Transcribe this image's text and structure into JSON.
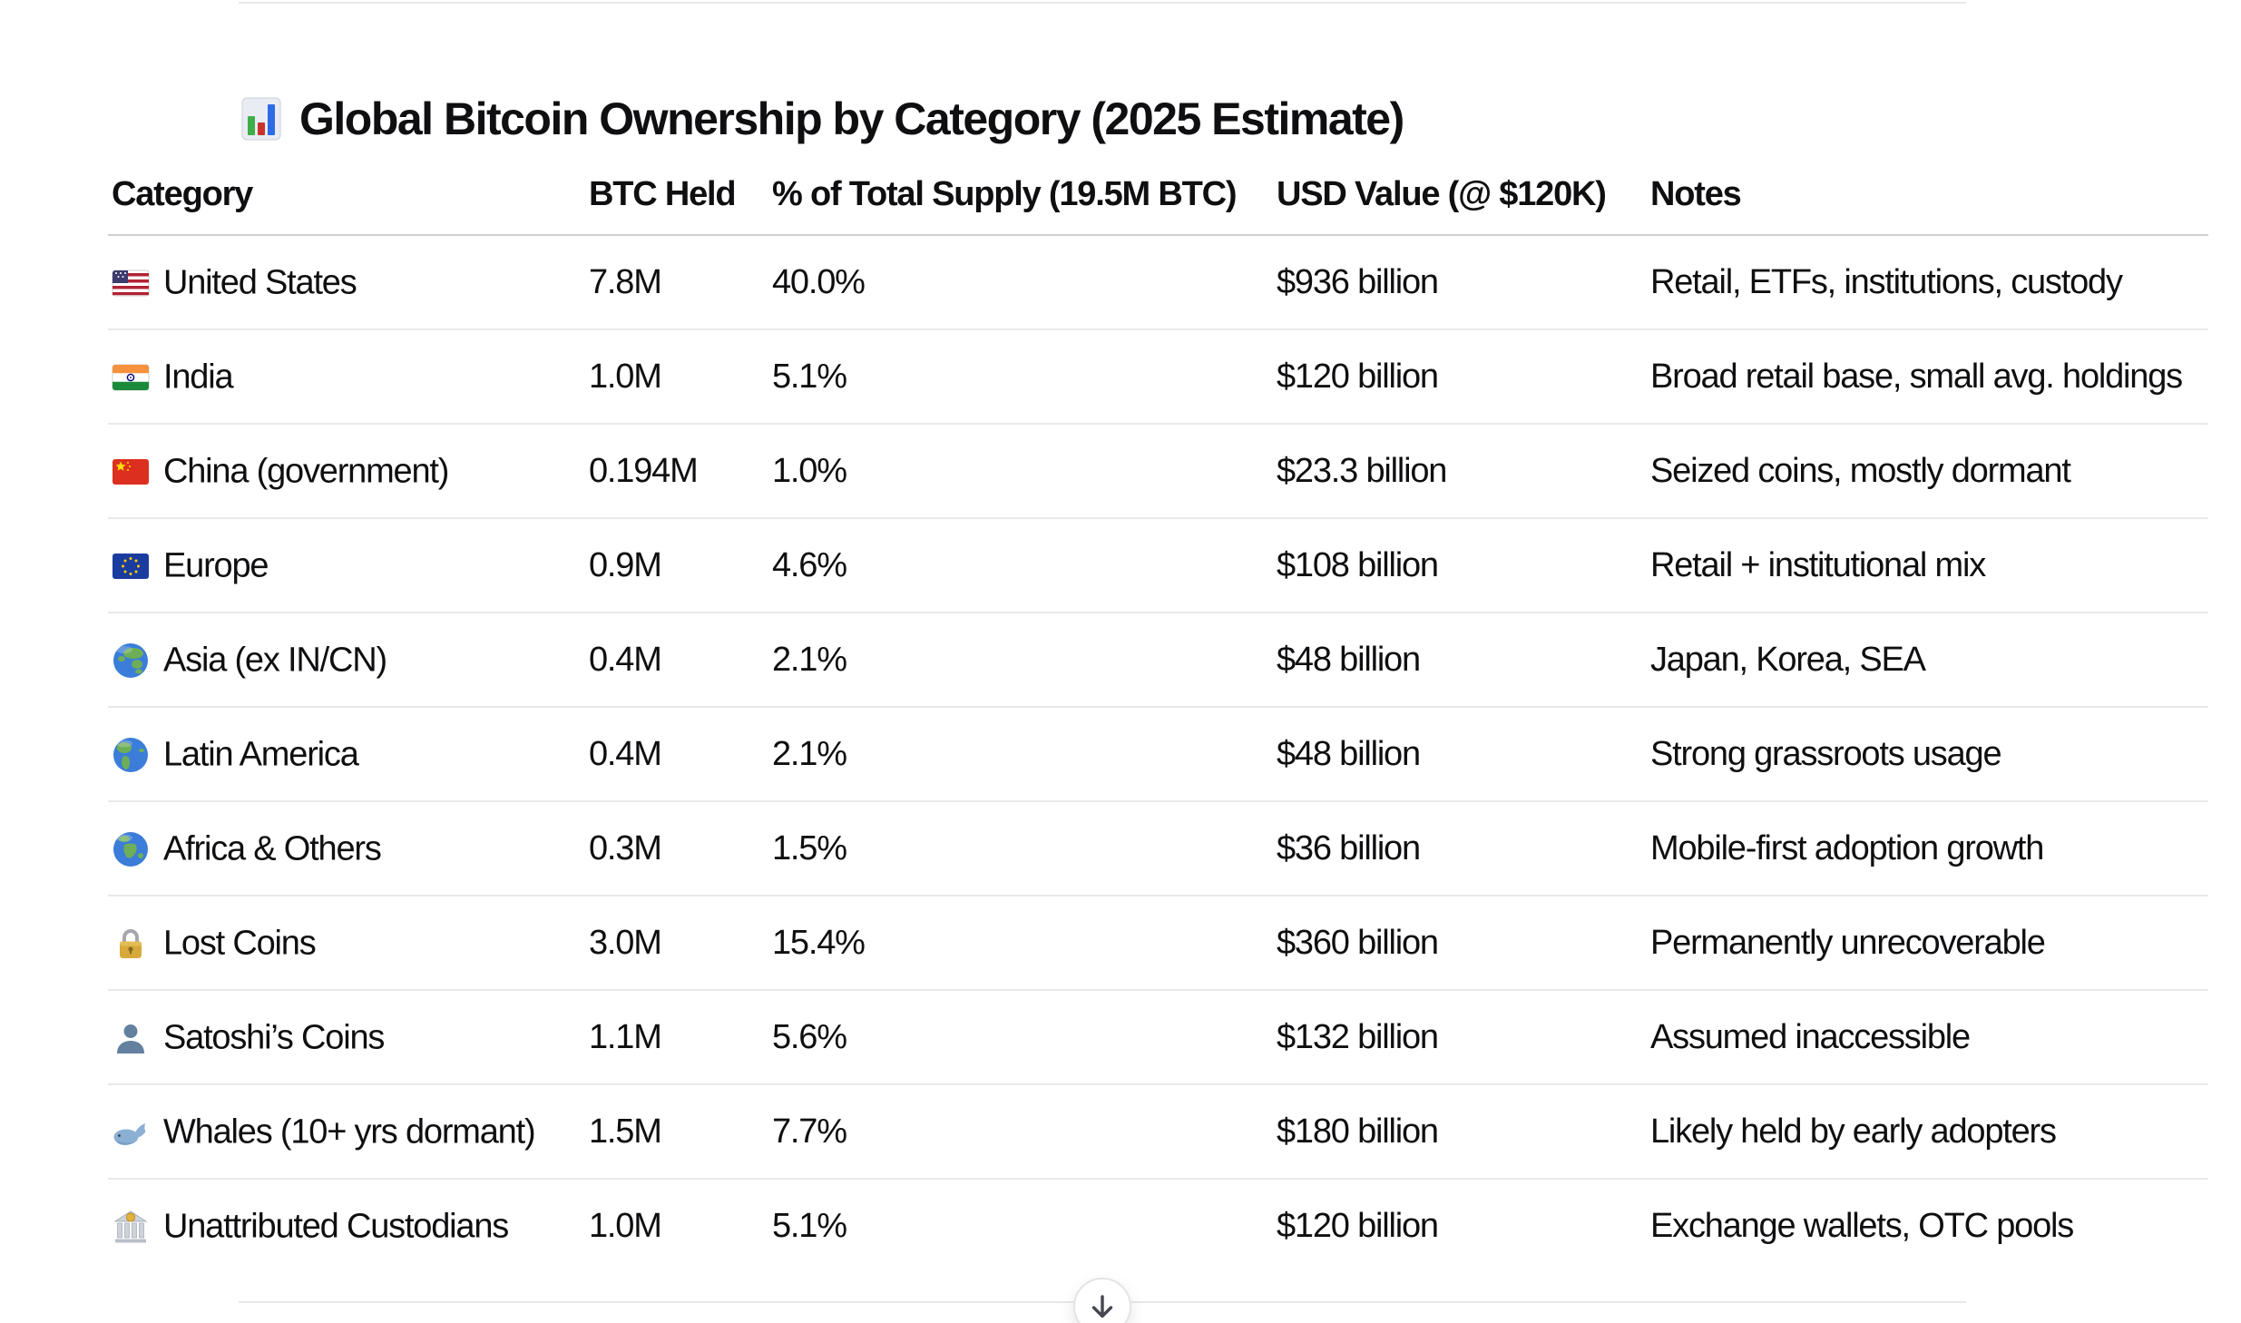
{
  "title": {
    "icon": "bar-chart",
    "text": "Global Bitcoin Ownership by Category (2025 Estimate)"
  },
  "table": {
    "columns": [
      "Category",
      "BTC Held",
      "% of Total Supply (19.5M BTC)",
      "USD Value (@ $120K)",
      "Notes"
    ],
    "row_keys": [
      "category",
      "btc_held",
      "pct_supply",
      "usd_value",
      "notes"
    ],
    "rows": [
      {
        "icon": "us-flag",
        "category": "United States",
        "btc_held": "7.8M",
        "pct_supply": "40.0%",
        "usd_value": "$936 billion",
        "notes": "Retail, ETFs, institutions, custody"
      },
      {
        "icon": "india-flag",
        "category": "India",
        "btc_held": "1.0M",
        "pct_supply": "5.1%",
        "usd_value": "$120 billion",
        "notes": "Broad retail base, small avg. holdings"
      },
      {
        "icon": "china-flag",
        "category": "China (government)",
        "btc_held": "0.194M",
        "pct_supply": "1.0%",
        "usd_value": "$23.3 billion",
        "notes": "Seized coins, mostly dormant"
      },
      {
        "icon": "eu-flag",
        "category": "Europe",
        "btc_held": "0.9M",
        "pct_supply": "4.6%",
        "usd_value": "$108 billion",
        "notes": "Retail + institutional mix"
      },
      {
        "icon": "globe-asia",
        "category": "Asia (ex IN/CN)",
        "btc_held": "0.4M",
        "pct_supply": "2.1%",
        "usd_value": "$48 billion",
        "notes": "Japan, Korea, SEA"
      },
      {
        "icon": "globe-americas",
        "category": "Latin America",
        "btc_held": "0.4M",
        "pct_supply": "2.1%",
        "usd_value": "$48 billion",
        "notes": "Strong grassroots usage"
      },
      {
        "icon": "globe-africa",
        "category": "Africa & Others",
        "btc_held": "0.3M",
        "pct_supply": "1.5%",
        "usd_value": "$36 billion",
        "notes": "Mobile-first adoption growth"
      },
      {
        "icon": "lock",
        "category": "Lost Coins",
        "btc_held": "3.0M",
        "pct_supply": "15.4%",
        "usd_value": "$360 billion",
        "notes": "Permanently unrecoverable"
      },
      {
        "icon": "person",
        "category": "Satoshi’s Coins",
        "btc_held": "1.1M",
        "pct_supply": "5.6%",
        "usd_value": "$132 billion",
        "notes": "Assumed inaccessible"
      },
      {
        "icon": "whale",
        "category": "Whales (10+ yrs dormant)",
        "btc_held": "1.5M",
        "pct_supply": "7.7%",
        "usd_value": "$180 billion",
        "notes": "Likely held by early adopters"
      },
      {
        "icon": "bank",
        "category": "Unattributed Custodians",
        "btc_held": "1.0M",
        "pct_supply": "5.1%",
        "usd_value": "$120 billion",
        "notes": "Exchange wallets, OTC pools"
      }
    ]
  },
  "scroll_button": {
    "icon": "arrow-down"
  },
  "ui_colors": {
    "background": "#ffffff",
    "text": "#0f0f12",
    "divider": "#e8e8ea",
    "header_border": "#cfcfd4",
    "row_border": "#e9e9ec"
  }
}
